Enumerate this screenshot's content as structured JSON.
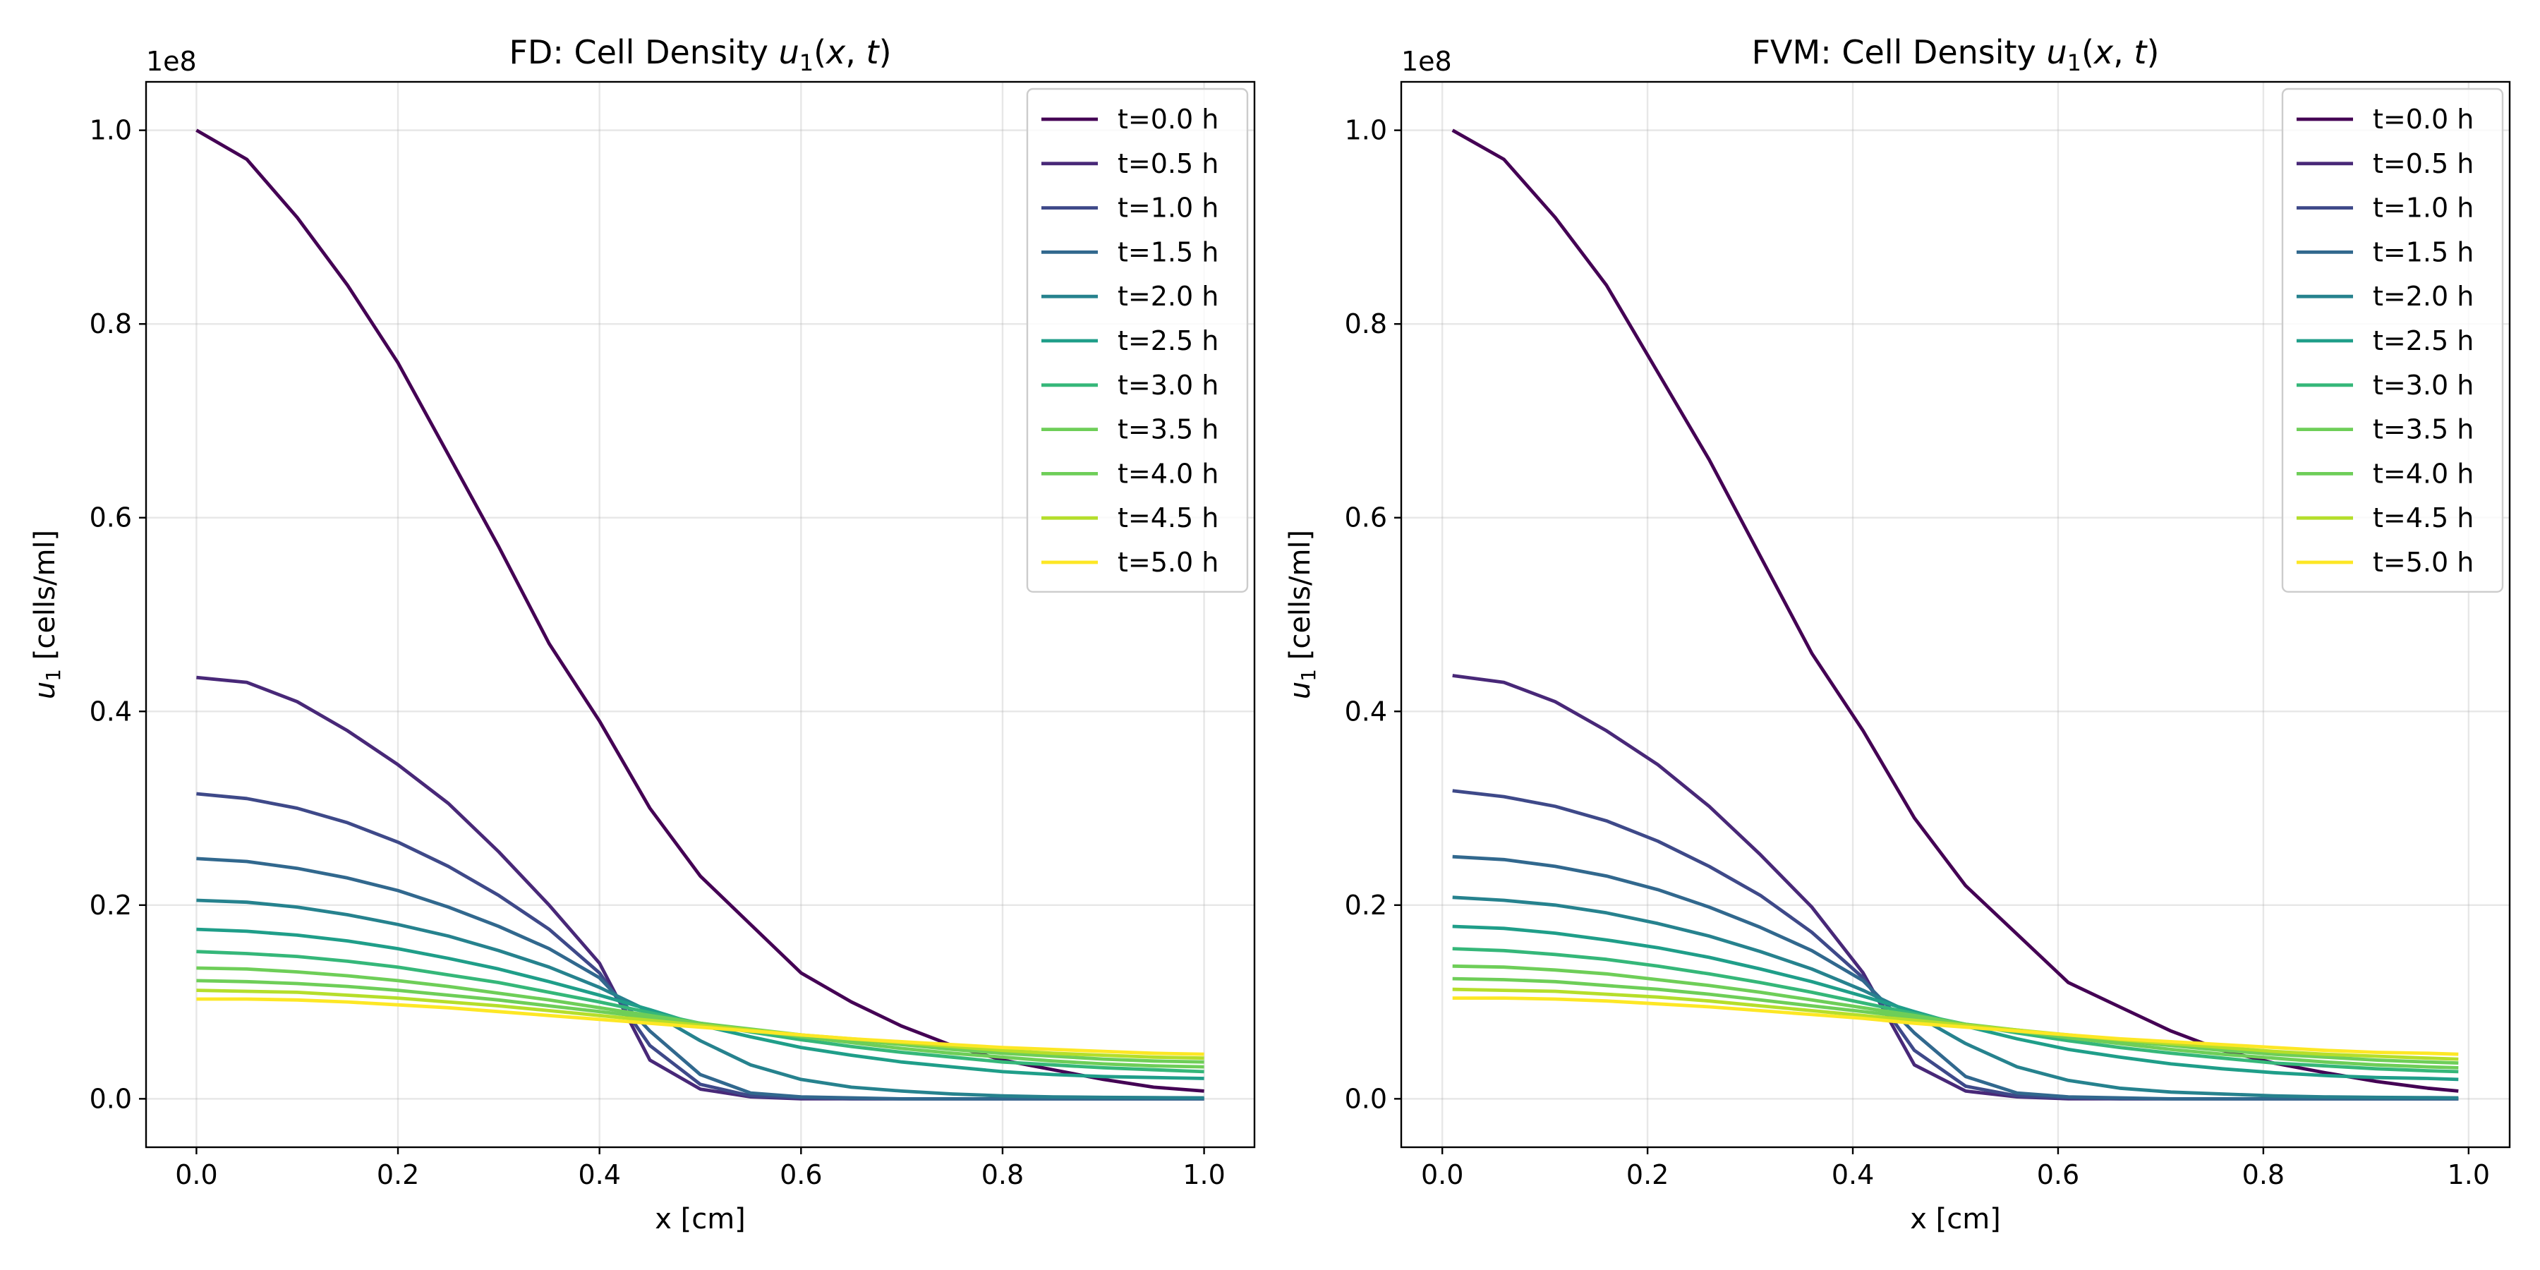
{
  "chart_data": [
    {
      "type": "line",
      "title_prefix": "FD: Cell Density ",
      "title_math_var": "u",
      "title_math_sub": "1",
      "title_math_args": "(x, t)",
      "xlabel": "x [cm]",
      "ylabel_var": "u",
      "ylabel_sub": "1",
      "ylabel_rest": " [cells/ml]",
      "y_offset_text": "1e8",
      "xlim": [
        -0.05,
        1.05
      ],
      "ylim": [
        -0.05,
        1.05
      ],
      "x_ticks": [
        0.0,
        0.2,
        0.4,
        0.6,
        0.8,
        1.0
      ],
      "x_tick_labels": [
        "0.0",
        "0.2",
        "0.4",
        "0.6",
        "0.8",
        "1.0"
      ],
      "y_ticks": [
        0.0,
        0.2,
        0.4,
        0.6,
        0.8,
        1.0
      ],
      "y_tick_labels": [
        "0.0",
        "0.2",
        "0.4",
        "0.6",
        "0.8",
        "1.0"
      ],
      "grid": true,
      "legend_position": "upper right",
      "y_unit_scale": "1e8",
      "x": [
        0.0,
        0.05,
        0.1,
        0.15,
        0.2,
        0.25,
        0.3,
        0.35,
        0.4,
        0.45,
        0.5,
        0.55,
        0.6,
        0.65,
        0.7,
        0.75,
        0.8,
        0.85,
        0.9,
        0.95,
        1.0
      ],
      "series": [
        {
          "name": "t=0.0 h",
          "color": "#440154",
          "values": [
            1.0,
            0.97,
            0.91,
            0.84,
            0.76,
            0.665,
            0.57,
            0.47,
            0.39,
            0.3,
            0.23,
            0.18,
            0.13,
            0.1,
            0.075,
            0.055,
            0.04,
            0.03,
            0.02,
            0.012,
            0.008
          ]
        },
        {
          "name": "t=0.5 h",
          "color": "#482878",
          "values": [
            0.435,
            0.43,
            0.41,
            0.38,
            0.345,
            0.305,
            0.255,
            0.2,
            0.14,
            0.04,
            0.01,
            0.002,
            0.0,
            0.0,
            0.0,
            0.0,
            0.0,
            0.0,
            0.0,
            0.0,
            0.0
          ]
        },
        {
          "name": "t=1.0 h",
          "color": "#3e4989",
          "values": [
            0.315,
            0.31,
            0.3,
            0.285,
            0.265,
            0.24,
            0.21,
            0.175,
            0.13,
            0.055,
            0.015,
            0.003,
            0.001,
            0.0,
            0.0,
            0.0,
            0.0,
            0.0,
            0.0,
            0.0,
            0.0
          ]
        },
        {
          "name": "t=1.5 h",
          "color": "#31688e",
          "values": [
            0.248,
            0.245,
            0.238,
            0.228,
            0.215,
            0.198,
            0.178,
            0.155,
            0.125,
            0.07,
            0.025,
            0.006,
            0.002,
            0.001,
            0.0,
            0.0,
            0.0,
            0.0,
            0.0,
            0.0,
            0.0
          ]
        },
        {
          "name": "t=2.0 h",
          "color": "#26828e",
          "values": [
            0.205,
            0.203,
            0.198,
            0.19,
            0.18,
            0.168,
            0.153,
            0.136,
            0.115,
            0.09,
            0.06,
            0.035,
            0.02,
            0.012,
            0.008,
            0.005,
            0.003,
            0.002,
            0.0015,
            0.0012,
            0.001
          ]
        },
        {
          "name": "t=2.5 h",
          "color": "#1f9e89",
          "values": [
            0.175,
            0.173,
            0.169,
            0.163,
            0.155,
            0.145,
            0.134,
            0.121,
            0.107,
            0.092,
            0.076,
            0.064,
            0.053,
            0.045,
            0.038,
            0.033,
            0.028,
            0.025,
            0.023,
            0.022,
            0.021
          ]
        },
        {
          "name": "t=3.0 h",
          "color": "#35b779",
          "values": [
            0.152,
            0.15,
            0.147,
            0.142,
            0.136,
            0.128,
            0.12,
            0.11,
            0.1,
            0.089,
            0.078,
            0.069,
            0.061,
            0.054,
            0.048,
            0.043,
            0.038,
            0.035,
            0.032,
            0.03,
            0.028
          ]
        },
        {
          "name": "t=3.5 h",
          "color": "#6ece58",
          "values": [
            0.135,
            0.134,
            0.131,
            0.127,
            0.122,
            0.116,
            0.109,
            0.102,
            0.094,
            0.086,
            0.078,
            0.071,
            0.064,
            0.058,
            0.052,
            0.047,
            0.043,
            0.039,
            0.036,
            0.034,
            0.033
          ]
        },
        {
          "name": "t=4.0 h",
          "color": "#6ece58",
          "values": [
            0.122,
            0.121,
            0.119,
            0.116,
            0.112,
            0.107,
            0.102,
            0.096,
            0.09,
            0.084,
            0.078,
            0.072,
            0.066,
            0.061,
            0.056,
            0.051,
            0.047,
            0.044,
            0.041,
            0.039,
            0.038
          ]
        },
        {
          "name": "t=4.5 h",
          "color": "#b5de2b",
          "values": [
            0.112,
            0.111,
            0.11,
            0.107,
            0.104,
            0.1,
            0.096,
            0.091,
            0.086,
            0.081,
            0.076,
            0.071,
            0.066,
            0.062,
            0.058,
            0.054,
            0.05,
            0.047,
            0.045,
            0.043,
            0.042
          ]
        },
        {
          "name": "t=5.0 h",
          "color": "#fde725",
          "values": [
            0.103,
            0.103,
            0.102,
            0.1,
            0.097,
            0.094,
            0.09,
            0.086,
            0.082,
            0.078,
            0.074,
            0.07,
            0.066,
            0.062,
            0.059,
            0.056,
            0.053,
            0.051,
            0.049,
            0.047,
            0.046
          ]
        }
      ]
    },
    {
      "type": "line",
      "title_prefix": "FVM: Cell Density ",
      "title_math_var": "u",
      "title_math_sub": "1",
      "title_math_args": "(x, t)",
      "xlabel": "x [cm]",
      "ylabel_var": "u",
      "ylabel_sub": "1",
      "ylabel_rest": " [cells/ml]",
      "y_offset_text": "1e8",
      "xlim": [
        -0.04,
        1.04
      ],
      "ylim": [
        -0.05,
        1.05
      ],
      "x_ticks": [
        0.0,
        0.2,
        0.4,
        0.6,
        0.8,
        1.0
      ],
      "x_tick_labels": [
        "0.0",
        "0.2",
        "0.4",
        "0.6",
        "0.8",
        "1.0"
      ],
      "y_ticks": [
        0.0,
        0.2,
        0.4,
        0.6,
        0.8,
        1.0
      ],
      "y_tick_labels": [
        "0.0",
        "0.2",
        "0.4",
        "0.6",
        "0.8",
        "1.0"
      ],
      "grid": true,
      "legend_position": "upper right",
      "y_unit_scale": "1e8",
      "x": [
        0.01,
        0.06,
        0.11,
        0.16,
        0.21,
        0.26,
        0.31,
        0.36,
        0.41,
        0.46,
        0.51,
        0.56,
        0.61,
        0.66,
        0.71,
        0.76,
        0.81,
        0.86,
        0.91,
        0.96,
        0.99
      ],
      "series": [
        {
          "name": "t=0.0 h",
          "color": "#440154",
          "values": [
            1.0,
            0.97,
            0.91,
            0.84,
            0.75,
            0.66,
            0.56,
            0.46,
            0.38,
            0.29,
            0.22,
            0.17,
            0.12,
            0.095,
            0.07,
            0.05,
            0.037,
            0.027,
            0.018,
            0.011,
            0.008
          ]
        },
        {
          "name": "t=0.5 h",
          "color": "#482878",
          "values": [
            0.437,
            0.43,
            0.41,
            0.38,
            0.345,
            0.302,
            0.252,
            0.198,
            0.13,
            0.035,
            0.008,
            0.002,
            0.0,
            0.0,
            0.0,
            0.0,
            0.0,
            0.0,
            0.0,
            0.0,
            0.0
          ]
        },
        {
          "name": "t=1.0 h",
          "color": "#3e4989",
          "values": [
            0.318,
            0.312,
            0.302,
            0.287,
            0.266,
            0.24,
            0.21,
            0.172,
            0.125,
            0.05,
            0.013,
            0.003,
            0.001,
            0.0,
            0.0,
            0.0,
            0.0,
            0.0,
            0.0,
            0.0,
            0.0
          ]
        },
        {
          "name": "t=1.5 h",
          "color": "#31688e",
          "values": [
            0.25,
            0.247,
            0.24,
            0.23,
            0.216,
            0.198,
            0.177,
            0.153,
            0.122,
            0.068,
            0.023,
            0.006,
            0.002,
            0.001,
            0.0,
            0.0,
            0.0,
            0.0,
            0.0,
            0.0,
            0.0
          ]
        },
        {
          "name": "t=2.0 h",
          "color": "#26828e",
          "values": [
            0.208,
            0.205,
            0.2,
            0.192,
            0.181,
            0.168,
            0.152,
            0.134,
            0.112,
            0.087,
            0.057,
            0.033,
            0.019,
            0.011,
            0.007,
            0.005,
            0.003,
            0.002,
            0.0015,
            0.0012,
            0.001
          ]
        },
        {
          "name": "t=2.5 h",
          "color": "#1f9e89",
          "values": [
            0.178,
            0.176,
            0.171,
            0.164,
            0.156,
            0.146,
            0.134,
            0.121,
            0.106,
            0.09,
            0.075,
            0.062,
            0.051,
            0.043,
            0.036,
            0.031,
            0.027,
            0.024,
            0.022,
            0.021,
            0.02
          ]
        },
        {
          "name": "t=3.0 h",
          "color": "#35b779",
          "values": [
            0.155,
            0.153,
            0.149,
            0.144,
            0.137,
            0.129,
            0.12,
            0.11,
            0.099,
            0.088,
            0.077,
            0.068,
            0.06,
            0.053,
            0.047,
            0.042,
            0.037,
            0.034,
            0.031,
            0.029,
            0.028
          ]
        },
        {
          "name": "t=3.5 h",
          "color": "#6ece58",
          "values": [
            0.137,
            0.136,
            0.133,
            0.129,
            0.123,
            0.117,
            0.11,
            0.102,
            0.094,
            0.086,
            0.077,
            0.07,
            0.063,
            0.057,
            0.051,
            0.046,
            0.042,
            0.038,
            0.035,
            0.033,
            0.032
          ]
        },
        {
          "name": "t=4.0 h",
          "color": "#6ece58",
          "values": [
            0.124,
            0.123,
            0.121,
            0.117,
            0.113,
            0.108,
            0.102,
            0.096,
            0.09,
            0.084,
            0.077,
            0.071,
            0.065,
            0.06,
            0.055,
            0.05,
            0.046,
            0.043,
            0.04,
            0.038,
            0.037
          ]
        },
        {
          "name": "t=4.5 h",
          "color": "#b5de2b",
          "values": [
            0.113,
            0.112,
            0.111,
            0.108,
            0.105,
            0.101,
            0.096,
            0.091,
            0.086,
            0.081,
            0.076,
            0.071,
            0.066,
            0.061,
            0.057,
            0.053,
            0.049,
            0.046,
            0.044,
            0.042,
            0.041
          ]
        },
        {
          "name": "t=5.0 h",
          "color": "#fde725",
          "values": [
            0.104,
            0.104,
            0.103,
            0.101,
            0.098,
            0.095,
            0.091,
            0.087,
            0.083,
            0.078,
            0.074,
            0.07,
            0.066,
            0.062,
            0.059,
            0.056,
            0.053,
            0.05,
            0.048,
            0.047,
            0.046
          ]
        }
      ]
    }
  ]
}
